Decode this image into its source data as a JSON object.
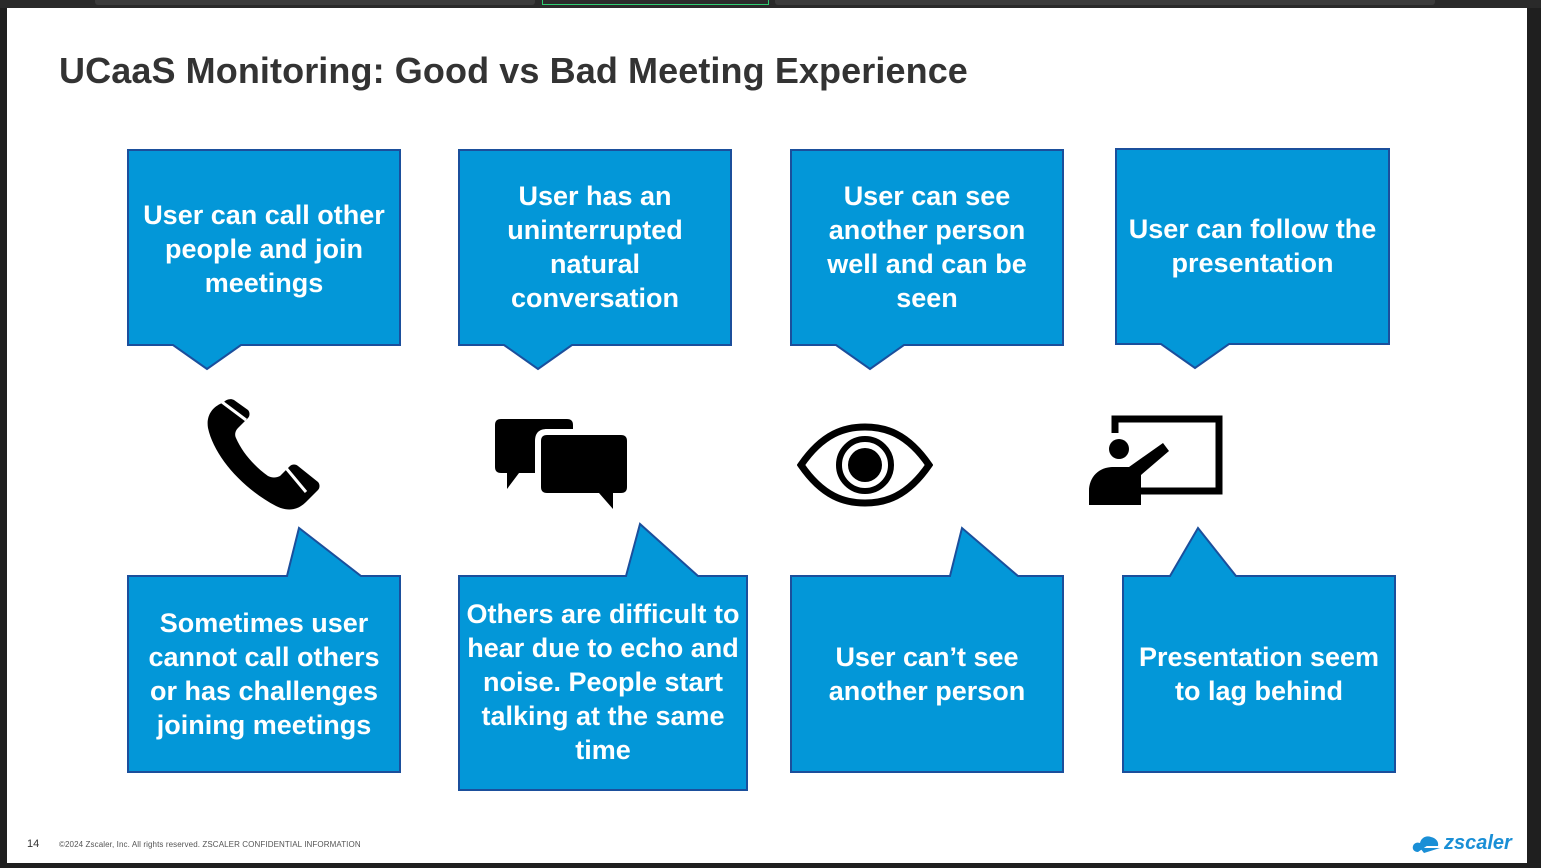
{
  "slide": {
    "title": "UCaaS Monitoring: Good vs Bad Meeting Experience",
    "page_number": "14",
    "copyright": "©2024 Zscaler, Inc. All rights reserved. ZSCALER CONFIDENTIAL INFORMATION",
    "logo_text": "zscaler"
  },
  "colors": {
    "callout_fill": "#0397d8",
    "callout_border": "#1b4f9c",
    "title": "#333333",
    "brand": "#1a8fd6"
  },
  "good": [
    {
      "text": "User can call other people and join meetings"
    },
    {
      "text": "User has an uninterrupted natural conversation"
    },
    {
      "text": "User can see another person well and can be seen"
    },
    {
      "text": "User can follow the presentation"
    }
  ],
  "bad": [
    {
      "text": "Sometimes user cannot call others or has challenges joining meetings"
    },
    {
      "text": "Others are difficult to hear due to echo and noise. People start talking at the same time"
    },
    {
      "text": "User can’t see another person"
    },
    {
      "text": "Presentation seem to lag behind"
    }
  ],
  "icons": [
    "phone-icon",
    "chat-bubbles-icon",
    "eye-icon",
    "presentation-icon"
  ]
}
